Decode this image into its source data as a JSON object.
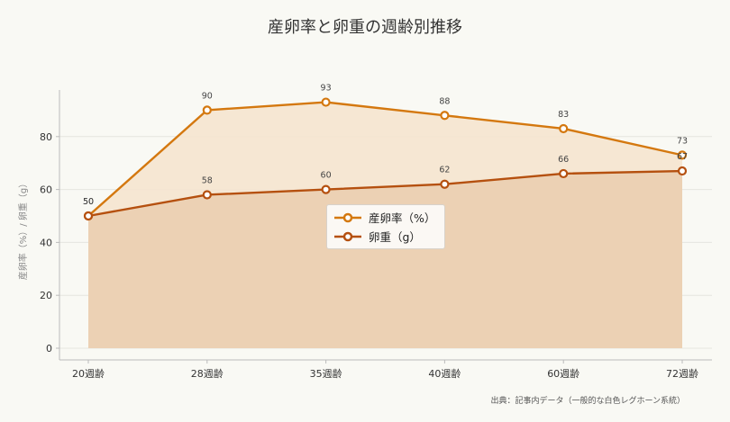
{
  "title": "産卵率と卵重の週齢別推移",
  "source": "出典：記事内データ（一般的な白色レグホーン系統）",
  "colors": {
    "series_line": [
      "#d4780f",
      "#b5500f"
    ],
    "series_fill": [
      "#f5e4cf",
      "#ebceb0"
    ],
    "marker_fill": "#ffffff"
  },
  "chart_data": {
    "type": "area",
    "title": "産卵率と卵重の週齢別推移",
    "xlabel": "",
    "ylabel": "産卵率（%）/ 卵重（g）",
    "categories": [
      "20週齢",
      "28週齢",
      "35週齢",
      "40週齢",
      "60週齢",
      "72週齢"
    ],
    "series": [
      {
        "name": "産卵率（%）",
        "values": [
          50,
          90,
          93,
          88,
          83,
          73
        ]
      },
      {
        "name": "卵重（g）",
        "values": [
          50,
          58,
          60,
          62,
          66,
          67
        ]
      }
    ],
    "ylim": [
      0,
      100
    ],
    "yticks": [
      0,
      20,
      40,
      60,
      80
    ],
    "data_labels": true,
    "grid": "horizontal",
    "legend": "center"
  }
}
